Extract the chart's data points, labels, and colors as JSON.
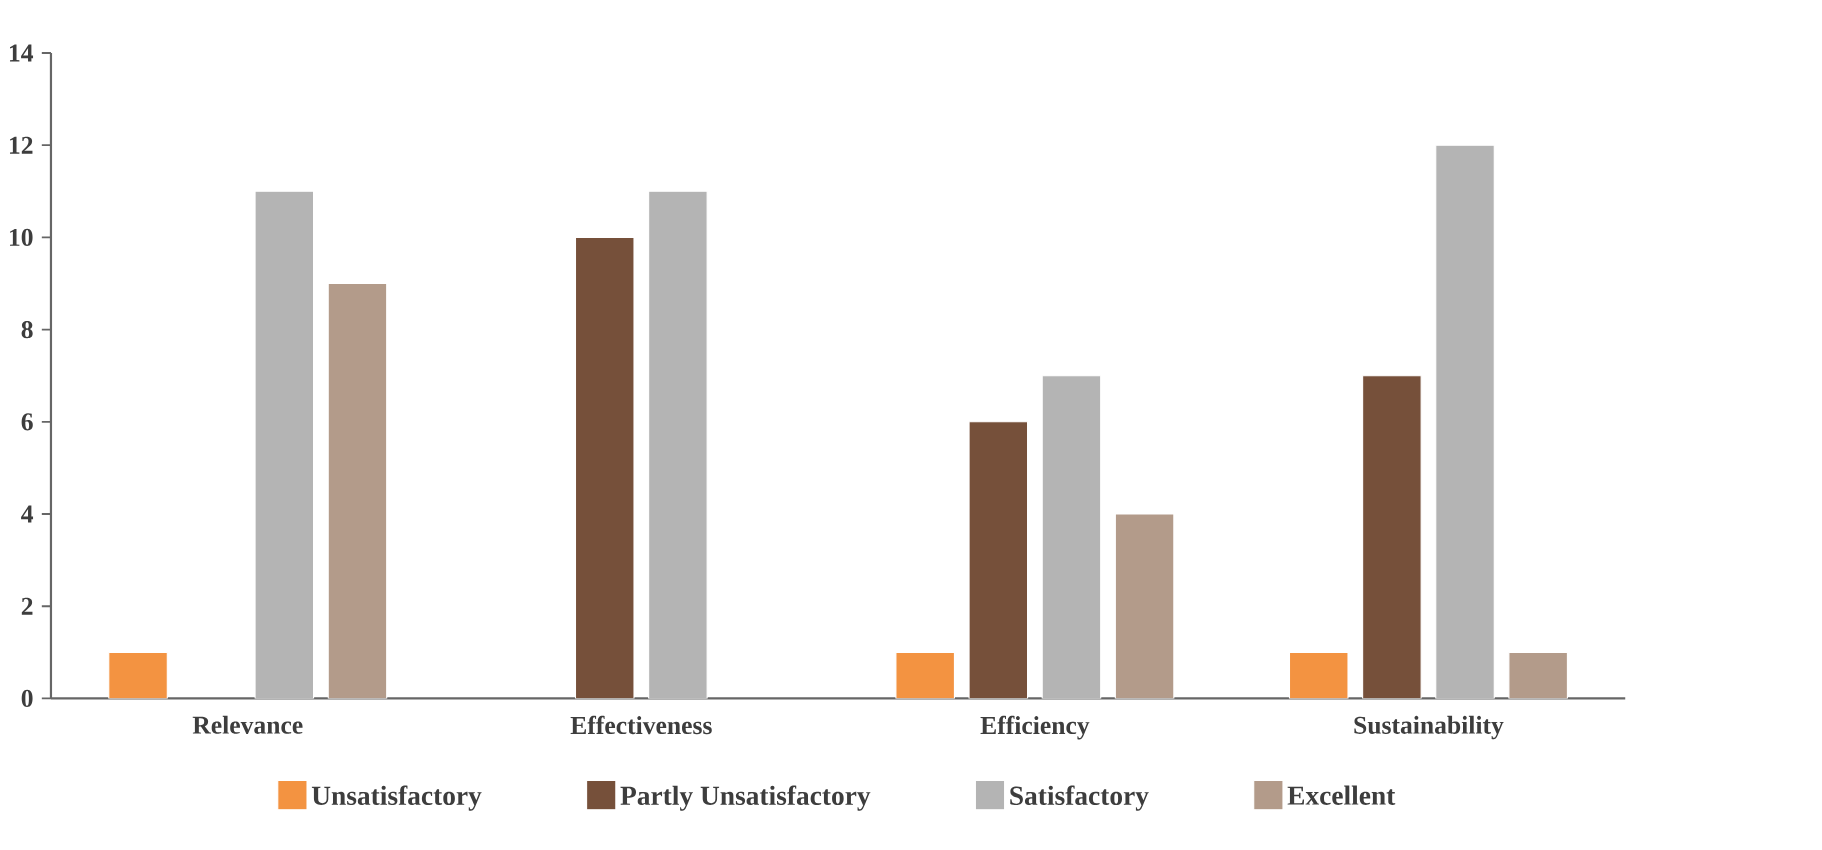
{
  "chart_data": {
    "type": "bar",
    "categories": [
      "Relevance",
      "Effectiveness",
      "Efficiency",
      "Sustainability"
    ],
    "series": [
      {
        "name": "Unsatisfactory",
        "color": "#f39341",
        "values": [
          1,
          null,
          1,
          1
        ]
      },
      {
        "name": "Partly Unsatisfactory",
        "color": "#76503a",
        "values": [
          null,
          10,
          6,
          7
        ]
      },
      {
        "name": "Satisfactory",
        "color": "#b4b4b4",
        "values": [
          11,
          11,
          7,
          12
        ]
      },
      {
        "name": "Excellent",
        "color": "#b39b8a",
        "values": [
          9,
          null,
          4,
          1
        ]
      }
    ],
    "ylim": [
      0,
      14
    ],
    "yticks": [
      0,
      2,
      4,
      6,
      8,
      10,
      12,
      14
    ],
    "grid": false,
    "legend": "bottom"
  }
}
